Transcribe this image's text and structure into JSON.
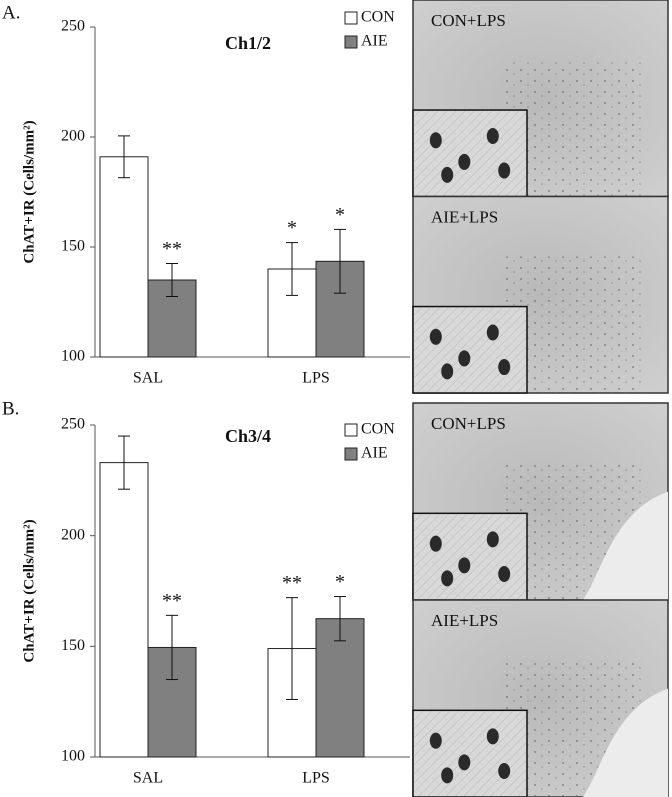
{
  "chart_data": [
    {
      "type": "bar",
      "panel": "A.",
      "title": "Ch1/2",
      "y_label": "ChAT+IR (Cells/mm²)",
      "categories": [
        "SAL",
        "LPS"
      ],
      "series": [
        {
          "name": "CON",
          "color": "#ffffff",
          "values": [
            191,
            140
          ],
          "errors": [
            9.5,
            12
          ],
          "markers": [
            null,
            "*"
          ]
        },
        {
          "name": "AIE",
          "color": "#808080",
          "values": [
            135,
            143.5
          ],
          "errors": [
            7.5,
            14.5
          ],
          "markers": [
            "**",
            "*"
          ]
        }
      ],
      "ylim": [
        100,
        250
      ],
      "yticks": [
        100,
        150,
        200,
        250
      ],
      "grid": false,
      "legend": "top-right",
      "image_labels": [
        "CON+LPS",
        "AIE+LPS"
      ]
    },
    {
      "type": "bar",
      "panel": "B.",
      "title": "Ch3/4",
      "y_label": "ChAT+IR (Cells/mm²)",
      "categories": [
        "SAL",
        "LPS"
      ],
      "series": [
        {
          "name": "CON",
          "color": "#ffffff",
          "values": [
            233,
            149
          ],
          "errors": [
            12,
            23
          ],
          "markers": [
            null,
            "**"
          ]
        },
        {
          "name": "AIE",
          "color": "#808080",
          "values": [
            149.5,
            162.5
          ],
          "errors": [
            14.5,
            10
          ],
          "markers": [
            "**",
            "*"
          ]
        }
      ],
      "ylim": [
        100,
        250
      ],
      "yticks": [
        100,
        150,
        200,
        250
      ],
      "grid": false,
      "legend": "top-right",
      "image_labels": [
        "CON+LPS",
        "AIE+LPS"
      ]
    }
  ]
}
